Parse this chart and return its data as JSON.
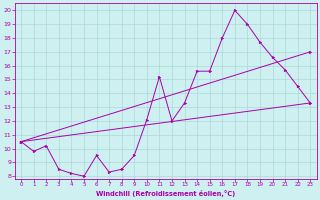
{
  "xlabel": "Windchill (Refroidissement éolien,°C)",
  "bg_color": "#cef0f0",
  "grid_color": "#aadada",
  "line_color": "#aa00aa",
  "xlim": [
    -0.5,
    23.5
  ],
  "ylim": [
    7.8,
    20.5
  ],
  "yticks": [
    8,
    9,
    10,
    11,
    12,
    13,
    14,
    15,
    16,
    17,
    18,
    19,
    20
  ],
  "xticks": [
    0,
    1,
    2,
    3,
    4,
    5,
    6,
    7,
    8,
    9,
    10,
    11,
    12,
    13,
    14,
    15,
    16,
    17,
    18,
    19,
    20,
    21,
    22,
    23
  ],
  "line1_x": [
    0,
    1,
    2,
    3,
    4,
    5,
    6,
    7,
    8,
    9,
    10,
    11,
    12,
    13,
    14,
    15,
    16,
    17,
    18,
    19,
    20,
    21,
    22,
    23
  ],
  "line1_y": [
    10.5,
    9.8,
    10.2,
    8.5,
    8.2,
    8.0,
    9.5,
    8.3,
    8.5,
    9.5,
    12.1,
    15.2,
    12.0,
    13.3,
    15.6,
    15.6,
    18.0,
    20.0,
    19.0,
    17.7,
    16.6,
    15.7,
    14.5,
    13.3
  ],
  "line2_x": [
    0,
    23
  ],
  "line2_y": [
    10.5,
    13.3
  ],
  "line3_x": [
    0,
    23
  ],
  "line3_y": [
    10.5,
    17.0
  ]
}
